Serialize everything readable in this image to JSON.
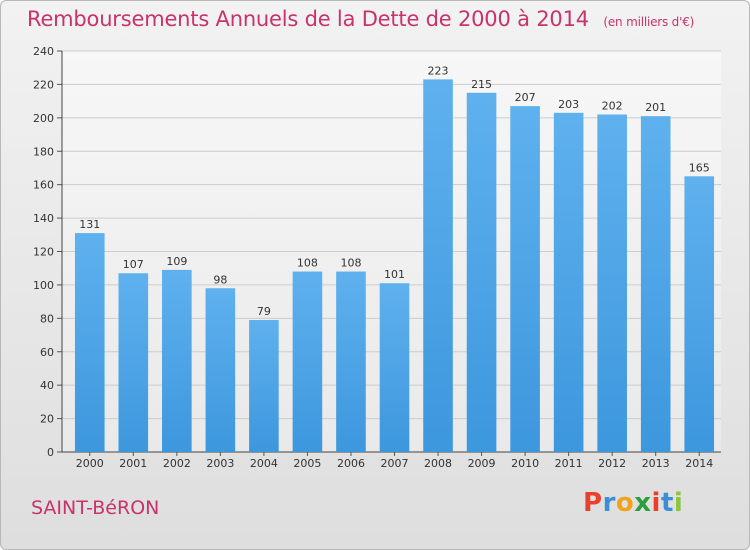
{
  "chart_data": {
    "type": "bar",
    "title": "Remboursements Annuels de la Dette de 2000 à 2014",
    "subtitle": "(en milliers d'€)",
    "categories": [
      "2000",
      "2001",
      "2002",
      "2003",
      "2004",
      "2005",
      "2006",
      "2007",
      "2008",
      "2009",
      "2010",
      "2011",
      "2012",
      "2013",
      "2014"
    ],
    "values": [
      131,
      107,
      109,
      98,
      79,
      108,
      108,
      101,
      223,
      215,
      207,
      203,
      202,
      201,
      165
    ],
    "ylim": [
      0,
      240
    ],
    "yticks": [
      0,
      20,
      40,
      60,
      80,
      100,
      120,
      140,
      160,
      180,
      200,
      220,
      240
    ],
    "grid": true,
    "bar_color": "#3d97dd",
    "grid_color": "#cccccc"
  },
  "commune": "SAINT-BéRON",
  "logo": {
    "text": "Proxiti",
    "letter_colors": [
      "#e8402b",
      "#3a8fd6",
      "#f2a21b",
      "#2a9f3b",
      "#e8402b",
      "#3a8fd6",
      "#8cc63f"
    ]
  }
}
